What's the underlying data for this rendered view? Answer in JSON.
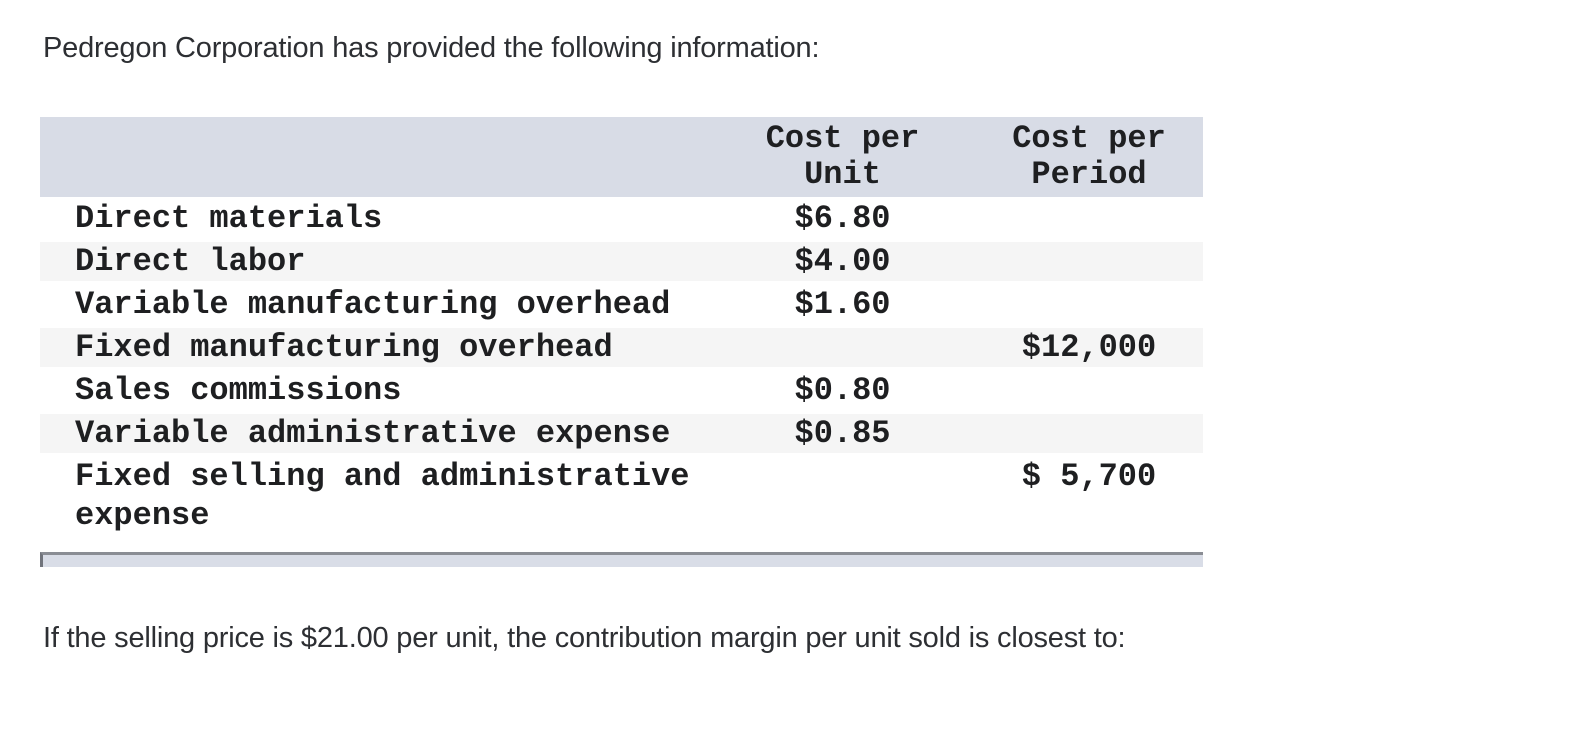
{
  "intro": "Pedregon Corporation has provided the following information:",
  "question": "If the selling price is $21.00 per unit, the contribution margin per unit sold is closest to:",
  "table": {
    "header": {
      "label": "",
      "unit": {
        "line1": "Cost per",
        "line2": "Unit"
      },
      "period": {
        "line1": "Cost per",
        "line2": "Period"
      }
    },
    "rows": [
      {
        "label": "Direct materials",
        "cost_per_unit": "$6.80",
        "cost_per_period": ""
      },
      {
        "label": "Direct labor",
        "cost_per_unit": "$4.00",
        "cost_per_period": ""
      },
      {
        "label": "Variable manufacturing overhead",
        "cost_per_unit": "$1.60",
        "cost_per_period": ""
      },
      {
        "label": "Fixed manufacturing overhead",
        "cost_per_unit": "",
        "cost_per_period": "$12,000"
      },
      {
        "label": "Sales commissions",
        "cost_per_unit": "$0.80",
        "cost_per_period": ""
      },
      {
        "label": "Variable administrative expense",
        "cost_per_unit": "$0.85",
        "cost_per_period": ""
      },
      {
        "label": "Fixed selling and administrative expense",
        "cost_per_unit": "",
        "cost_per_period": "$ 5,700"
      }
    ]
  },
  "colors": {
    "header_bg": "#d8dce6",
    "stripe_bg": "#f5f5f5",
    "table_text": "#1e1f21",
    "body_text": "#2d2f33",
    "scrollbar_track": "#d9dde7",
    "scrollbar_border": "#8a8d94"
  }
}
